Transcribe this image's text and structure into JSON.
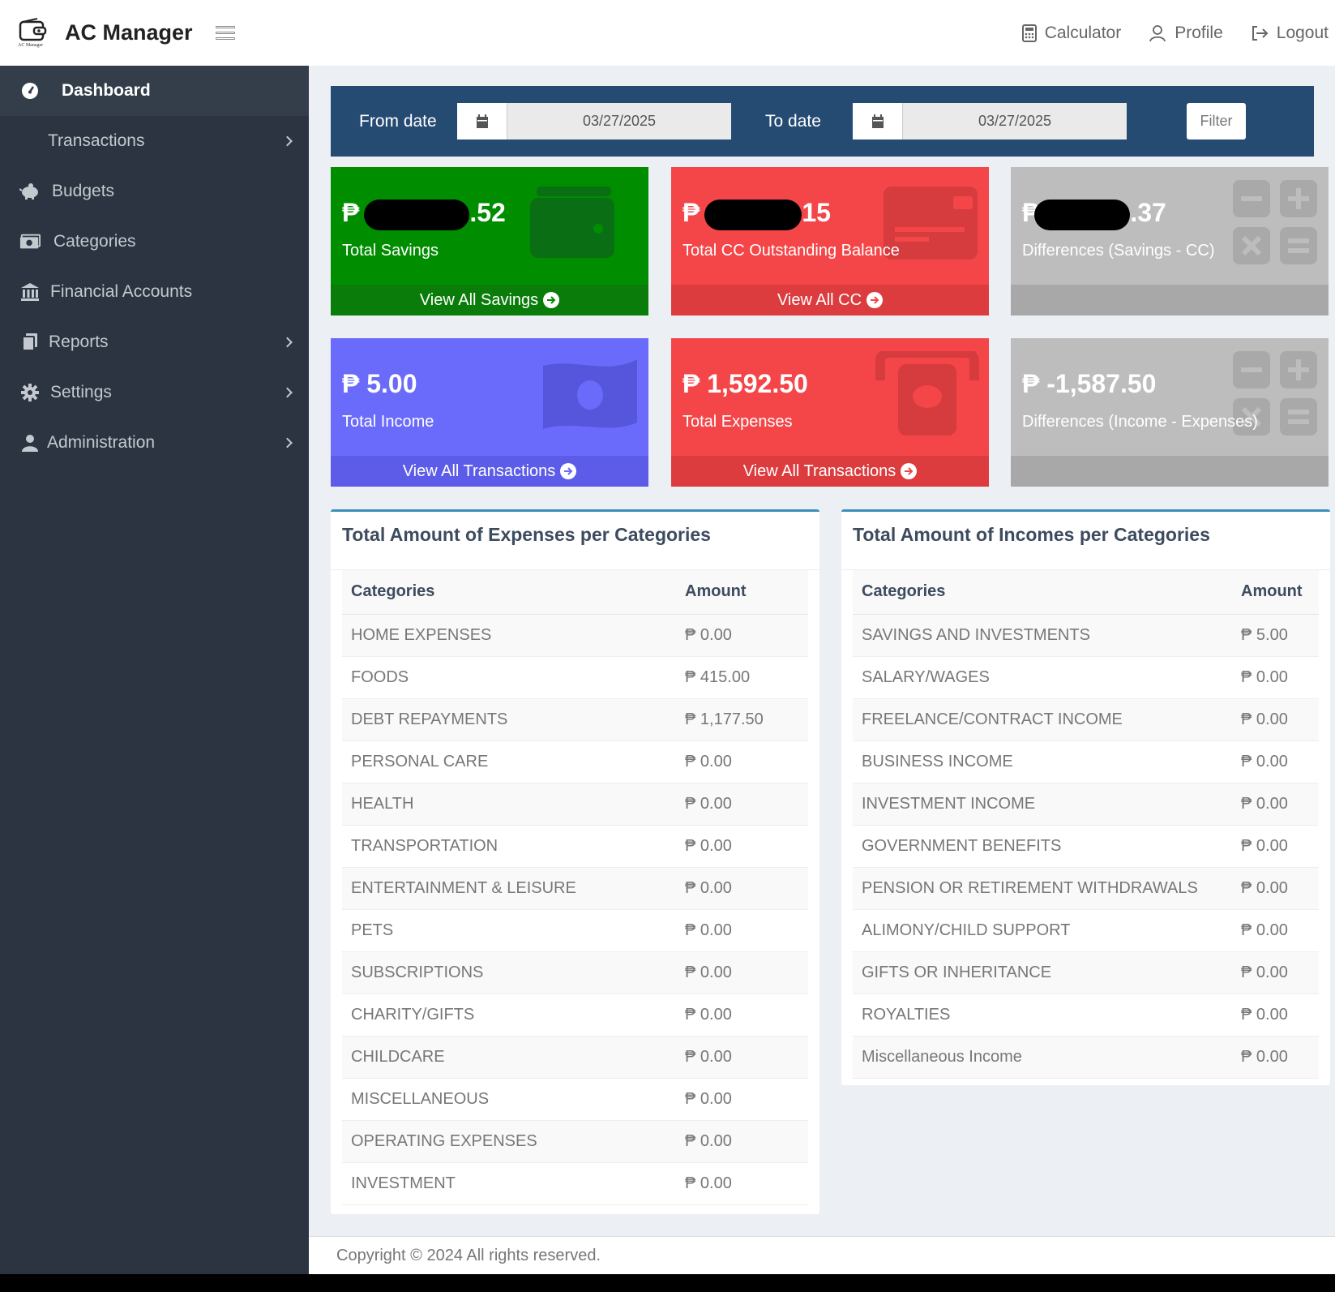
{
  "app": {
    "title": "AC Manager",
    "logo_text": "AC Manager"
  },
  "topnav": {
    "calculator": "Calculator",
    "profile": "Profile",
    "logout": "Logout"
  },
  "sidebar": {
    "items": [
      {
        "label": "Dashboard",
        "icon": "dashboard-icon"
      },
      {
        "label": "Transactions"
      },
      {
        "label": "Budgets",
        "icon": "piggy-bank-icon"
      },
      {
        "label": "Categories",
        "icon": "money-icon"
      },
      {
        "label": "Financial Accounts",
        "icon": "bank-icon"
      },
      {
        "label": "Reports",
        "icon": "copy-icon"
      },
      {
        "label": "Settings",
        "icon": "gear-icon"
      },
      {
        "label": "Administration",
        "icon": "user-icon"
      }
    ]
  },
  "filter": {
    "from_label": "From date",
    "from_value": "03/27/2025",
    "to_label": "To date",
    "to_value": "03/27/2025",
    "button": "Filter"
  },
  "cards": {
    "savings": {
      "currency": "₱",
      "suffix": ".52",
      "label": "Total Savings",
      "link": "View All Savings",
      "color": "#008d00"
    },
    "cc": {
      "currency": "₱",
      "suffix": "15",
      "label": "Total CC Outstanding Balance",
      "link": "View All CC",
      "color": "#f44648"
    },
    "diff_cc": {
      "currency": "₱",
      "suffix": ".37",
      "label": "Differences (Savings - CC)",
      "color": "#bdbdbd"
    },
    "income": {
      "value": "₱ 5.00",
      "label": "Total Income",
      "link": "View All Transactions",
      "color": "#6b6bfb"
    },
    "expenses": {
      "value": "₱ 1,592.50",
      "label": "Total Expenses",
      "link": "View All Transactions",
      "color": "#f44648"
    },
    "diff_income": {
      "value": "₱ -1,587.50",
      "label": "Differences (Income - Expenses)",
      "color": "#bdbdbd"
    }
  },
  "expenses_table": {
    "title": "Total Amount of Expenses per Categories",
    "headers": [
      "Categories",
      "Amount"
    ],
    "rows": [
      [
        "HOME EXPENSES",
        "₱ 0.00"
      ],
      [
        "FOODS",
        "₱ 415.00"
      ],
      [
        "DEBT REPAYMENTS",
        "₱ 1,177.50"
      ],
      [
        "PERSONAL CARE",
        "₱ 0.00"
      ],
      [
        "HEALTH",
        "₱ 0.00"
      ],
      [
        "TRANSPORTATION",
        "₱ 0.00"
      ],
      [
        "ENTERTAINMENT & LEISURE",
        "₱ 0.00"
      ],
      [
        "PETS",
        "₱ 0.00"
      ],
      [
        "SUBSCRIPTIONS",
        "₱ 0.00"
      ],
      [
        "CHARITY/GIFTS",
        "₱ 0.00"
      ],
      [
        "CHILDCARE",
        "₱ 0.00"
      ],
      [
        "MISCELLANEOUS",
        "₱ 0.00"
      ],
      [
        "OPERATING EXPENSES",
        "₱ 0.00"
      ],
      [
        "INVESTMENT",
        "₱ 0.00"
      ]
    ]
  },
  "incomes_table": {
    "title": "Total Amount of Incomes per Categories",
    "headers": [
      "Categories",
      "Amount"
    ],
    "rows": [
      [
        "SAVINGS AND INVESTMENTS",
        "₱ 5.00"
      ],
      [
        "SALARY/WAGES",
        "₱ 0.00"
      ],
      [
        "FREELANCE/CONTRACT INCOME",
        "₱ 0.00"
      ],
      [
        "BUSINESS INCOME",
        "₱ 0.00"
      ],
      [
        "INVESTMENT INCOME",
        "₱ 0.00"
      ],
      [
        "GOVERNMENT BENEFITS",
        "₱ 0.00"
      ],
      [
        "PENSION OR RETIREMENT WITHDRAWALS",
        "₱ 0.00"
      ],
      [
        "ALIMONY/CHILD SUPPORT",
        "₱ 0.00"
      ],
      [
        "GIFTS OR INHERITANCE",
        "₱ 0.00"
      ],
      [
        "ROYALTIES",
        "₱ 0.00"
      ],
      [
        "Miscellaneous Income",
        "₱ 0.00"
      ]
    ]
  },
  "footer": {
    "text": "Copyright © 2024 All rights reserved."
  }
}
